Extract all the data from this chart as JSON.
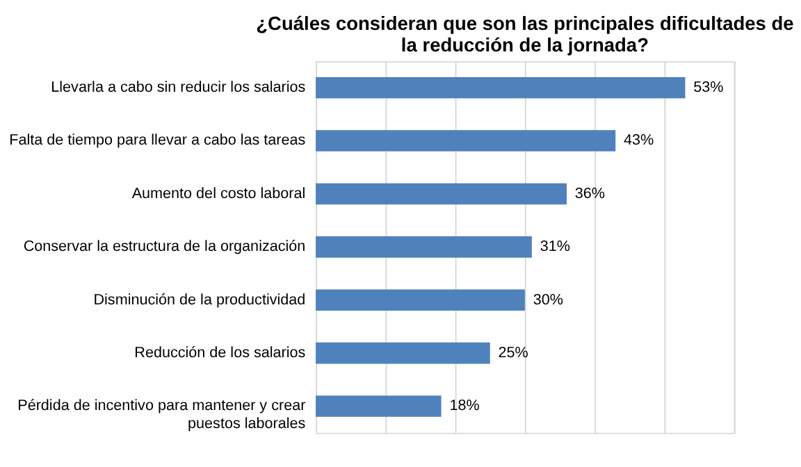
{
  "chart_data": {
    "type": "bar",
    "orientation": "horizontal",
    "title": "¿Cuáles consideran que son las principales dificultades de\nla reducción de la jornada?",
    "categories": [
      "Llevarla a cabo sin reducir los salarios",
      "Falta de tiempo para llevar a cabo las tareas",
      "Aumento del costo laboral",
      "Conservar la estructura de la organización",
      "Disminución de la productividad",
      "Reducción de los salarios",
      "Pérdida de incentivo para mantener y crear\npuestos laborales"
    ],
    "values": [
      53,
      43,
      36,
      31,
      30,
      25,
      18
    ],
    "value_labels": [
      "53%",
      "43%",
      "36%",
      "31%",
      "30%",
      "25%",
      "18%"
    ],
    "color": "#4f81bd",
    "xlim": [
      0,
      60
    ],
    "xticks": [
      {
        "value": 0,
        "label": null
      },
      {
        "value": 10,
        "label": null
      },
      {
        "value": 20,
        "label": null
      },
      {
        "value": 30,
        "label": null
      },
      {
        "value": 40,
        "label": null
      },
      {
        "value": 50,
        "label": null
      },
      {
        "value": 60,
        "label": null
      }
    ],
    "grid": "x",
    "tick_labels": "y"
  }
}
